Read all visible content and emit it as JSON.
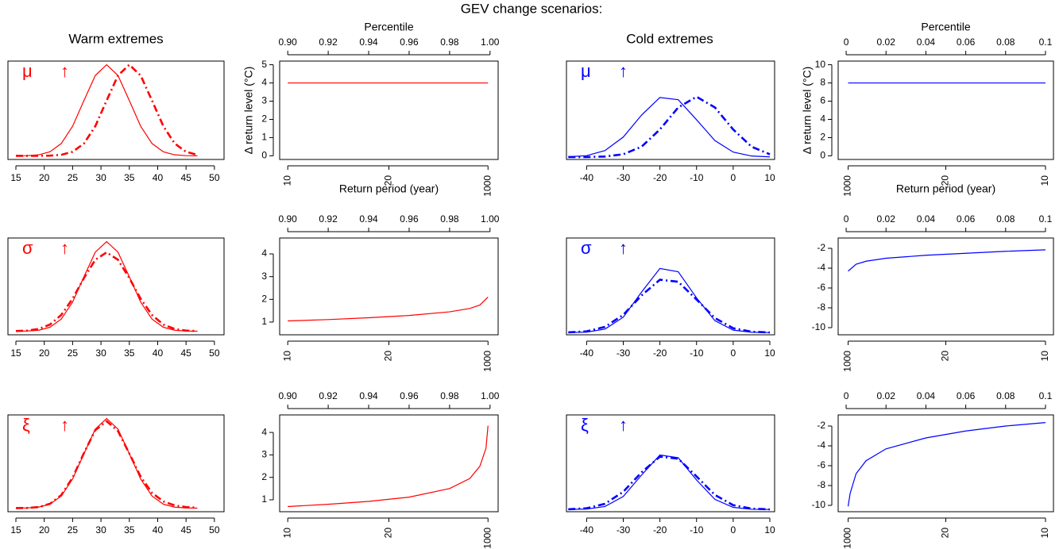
{
  "title": "GEV change scenarios:",
  "column_titles": [
    "Warm extremes",
    "Cold extremes"
  ],
  "chart_data": [
    {
      "type": "line",
      "annotations": [
        "μ",
        "↑"
      ],
      "color": "#ff0000",
      "x": [
        15,
        17,
        19,
        21,
        23,
        25,
        27,
        29,
        31,
        33,
        35,
        37,
        39,
        41,
        43,
        45,
        47
      ],
      "series": [
        {
          "style": "solid",
          "values": [
            0,
            0.0002,
            0.0011,
            0.0044,
            0.0135,
            0.0325,
            0.0607,
            0.0882,
            0.1,
            0.0882,
            0.0607,
            0.0325,
            0.0135,
            0.0044,
            0.0011,
            0.0002,
            0
          ]
        },
        {
          "style": "dashdot",
          "values": [
            0,
            0,
            0,
            0.0002,
            0.0011,
            0.0044,
            0.0135,
            0.0325,
            0.0607,
            0.0882,
            0.1,
            0.0882,
            0.0607,
            0.0325,
            0.0135,
            0.0044,
            0.0011
          ]
        }
      ],
      "xlim": [
        13.6,
        51.7
      ],
      "ylim": [
        -0.004,
        0.104
      ],
      "xticks": [
        15,
        20,
        25,
        30,
        35,
        40,
        45,
        50
      ]
    },
    {
      "type": "line",
      "color": "#ff0000",
      "x2label": "Percentile",
      "xlabel": "Return period (year)",
      "ylabel": "Δ return level (°C)",
      "xlabel_rotation": 90,
      "x": [
        0.9,
        0.999
      ],
      "series": [
        {
          "style": "solid",
          "values": [
            4,
            4
          ]
        }
      ],
      "xlim": [
        0.896,
        1.004
      ],
      "ylim": [
        -0.2,
        5.2
      ],
      "yticks": [
        0,
        1,
        2,
        3,
        4,
        5
      ],
      "x2ticks": [
        {
          "value": 0.9,
          "label": "0.90"
        },
        0.92,
        0.94,
        0.96,
        0.98,
        {
          "value": 1,
          "label": "1.00"
        }
      ],
      "xticks": [
        {
          "value": 0.9,
          "label": "10"
        },
        {
          "value": 0.95,
          "label": "20"
        },
        {
          "value": 0.999,
          "label": "1000"
        }
      ]
    },
    {
      "type": "line",
      "annotations": [
        "μ",
        "↑"
      ],
      "color": "#0000ff",
      "x": [
        -45,
        -40,
        -35,
        -30,
        -25,
        -20,
        -15,
        -10,
        -5,
        0,
        5,
        10
      ],
      "series": [
        {
          "style": "solid",
          "values": [
            0.0002,
            0.0011,
            0.0052,
            0.0162,
            0.0341,
            0.0484,
            0.0466,
            0.0303,
            0.0134,
            0.004,
            0.0008,
            0.0001
          ]
        },
        {
          "style": "dashdot",
          "values": [
            0,
            0,
            0.0004,
            0.0022,
            0.0084,
            0.0224,
            0.0403,
            0.049,
            0.0403,
            0.0224,
            0.0084,
            0.0022
          ]
        }
      ],
      "xlim": [
        -45.5,
        11.3
      ],
      "ylim": [
        -0.002,
        0.078
      ],
      "xticks": [
        -40,
        -30,
        -20,
        -10,
        0,
        10
      ]
    },
    {
      "type": "line",
      "color": "#0000ff",
      "x2label": "Percentile",
      "xlabel": "Return period (year)",
      "ylabel": "Δ return level (°C)",
      "xlabel_rotation": 90,
      "x": [
        0.001,
        0.1
      ],
      "series": [
        {
          "style": "solid",
          "values": [
            8,
            8
          ]
        }
      ],
      "xlim": [
        -0.004,
        0.104
      ],
      "ylim": [
        -0.4,
        10.4
      ],
      "yticks": [
        0,
        2,
        4,
        6,
        8,
        10
      ],
      "x2ticks": [
        0,
        0.02,
        0.04,
        0.06,
        0.08,
        0.1
      ],
      "xticks": [
        {
          "value": 0.001,
          "label": "1000"
        },
        {
          "value": 0.05,
          "label": "20"
        },
        {
          "value": 0.1,
          "label": "10"
        }
      ]
    },
    {
      "type": "line",
      "annotations": [
        "σ",
        "↑"
      ],
      "color": "#ff0000",
      "x": [
        15,
        17,
        19,
        21,
        23,
        25,
        27,
        29,
        31,
        33,
        35,
        37,
        39,
        41,
        43,
        45,
        47
      ],
      "series": [
        {
          "style": "solid",
          "values": [
            0,
            0.0002,
            0.0011,
            0.0044,
            0.0135,
            0.0325,
            0.0607,
            0.0882,
            0.1,
            0.0882,
            0.0607,
            0.0325,
            0.0135,
            0.0044,
            0.0011,
            0.0002,
            0
          ]
        },
        {
          "style": "dashdot",
          "values": [
            0.0002,
            0.0007,
            0.0025,
            0.0074,
            0.0181,
            0.0362,
            0.0593,
            0.0797,
            0.088,
            0.0797,
            0.0593,
            0.0362,
            0.0181,
            0.0074,
            0.0025,
            0.0007,
            0.0002
          ]
        }
      ],
      "xlim": [
        13.6,
        51.7
      ],
      "ylim": [
        -0.004,
        0.104
      ],
      "xticks": [
        15,
        20,
        25,
        30,
        35,
        40,
        45,
        50
      ]
    },
    {
      "type": "line",
      "color": "#ff0000",
      "xlabel_rotation": 90,
      "x": [
        0.9,
        0.92,
        0.94,
        0.96,
        0.98,
        0.99,
        0.995,
        0.999
      ],
      "series": [
        {
          "style": "solid",
          "values": [
            1.05,
            1.11,
            1.19,
            1.29,
            1.45,
            1.6,
            1.75,
            2.1
          ]
        }
      ],
      "xlim": [
        0.896,
        1.004
      ],
      "ylim": [
        0.44,
        4.7
      ],
      "yticks": [
        1,
        2,
        3,
        4
      ],
      "x2ticks": [
        {
          "value": 0.9,
          "label": "0.90"
        },
        0.92,
        0.94,
        0.96,
        0.98,
        {
          "value": 1,
          "label": "1.00"
        }
      ],
      "xticks": [
        {
          "value": 0.9,
          "label": "10"
        },
        {
          "value": 0.95,
          "label": "20"
        },
        {
          "value": 0.999,
          "label": "1000"
        }
      ]
    },
    {
      "type": "line",
      "annotations": [
        "σ",
        "↑"
      ],
      "color": "#0000ff",
      "x": [
        -45,
        -40,
        -35,
        -30,
        -25,
        -20,
        -15,
        -10,
        -5,
        0,
        5,
        10
      ],
      "series": [
        {
          "style": "solid",
          "values": [
            0,
            0.0004,
            0.0031,
            0.0138,
            0.0364,
            0.0576,
            0.0547,
            0.0312,
            0.0107,
            0.0022,
            0.0003,
            0
          ]
        },
        {
          "style": "dashdot",
          "values": [
            0.0002,
            0.0011,
            0.0051,
            0.0159,
            0.0334,
            0.0475,
            0.0457,
            0.0297,
            0.0131,
            0.0039,
            0.0008,
            0.0001
          ]
        }
      ],
      "xlim": [
        -45.5,
        11.3
      ],
      "ylim": [
        -0.002,
        0.085
      ],
      "xticks": [
        -40,
        -30,
        -20,
        -10,
        0,
        10
      ]
    },
    {
      "type": "line",
      "color": "#0000ff",
      "xlabel_rotation": 90,
      "x": [
        0.001,
        0.005,
        0.01,
        0.02,
        0.04,
        0.06,
        0.08,
        0.1
      ],
      "series": [
        {
          "style": "solid",
          "values": [
            -4.3,
            -3.6,
            -3.3,
            -3.0,
            -2.7,
            -2.5,
            -2.3,
            -2.15
          ]
        }
      ],
      "xlim": [
        -0.004,
        0.104
      ],
      "ylim": [
        -10.72,
        -0.96
      ],
      "yticks": [
        -2,
        -4,
        -6,
        -8,
        -10
      ],
      "x2ticks": [
        0,
        0.02,
        0.04,
        0.06,
        0.08,
        0.1
      ],
      "xticks": [
        {
          "value": 0.001,
          "label": "1000"
        },
        {
          "value": 0.05,
          "label": "20"
        },
        {
          "value": 0.1,
          "label": "10"
        }
      ]
    },
    {
      "type": "line",
      "annotations": [
        "ξ",
        "↑"
      ],
      "color": "#ff0000",
      "x": [
        15,
        17,
        19,
        21,
        23,
        25,
        27,
        29,
        31,
        33,
        35,
        37,
        39,
        41,
        43,
        45,
        47
      ],
      "series": [
        {
          "style": "solid",
          "values": [
            0,
            0.0002,
            0.0011,
            0.0044,
            0.0135,
            0.0325,
            0.0607,
            0.0882,
            0.1,
            0.0882,
            0.0607,
            0.0325,
            0.0135,
            0.0044,
            0.0011,
            0.0002,
            0
          ]
        },
        {
          "style": "dashdot",
          "values": [
            0,
            0.0002,
            0.0012,
            0.0048,
            0.0145,
            0.034,
            0.0615,
            0.087,
            0.097,
            0.086,
            0.061,
            0.035,
            0.017,
            0.0075,
            0.003,
            0.0012,
            0.0005
          ]
        }
      ],
      "xlim": [
        13.6,
        51.7
      ],
      "ylim": [
        -0.004,
        0.104
      ],
      "xticks": [
        15,
        20,
        25,
        30,
        35,
        40,
        45,
        50
      ]
    },
    {
      "type": "line",
      "color": "#ff0000",
      "xlabel_rotation": 90,
      "x": [
        0.9,
        0.92,
        0.94,
        0.96,
        0.98,
        0.99,
        0.995,
        0.998,
        0.999
      ],
      "series": [
        {
          "style": "solid",
          "values": [
            0.7,
            0.8,
            0.93,
            1.12,
            1.5,
            1.95,
            2.5,
            3.3,
            4.3
          ]
        }
      ],
      "xlim": [
        0.896,
        1.004
      ],
      "ylim": [
        0.47,
        4.78
      ],
      "yticks": [
        1,
        2,
        3,
        4
      ],
      "x2ticks": [
        {
          "value": 0.9,
          "label": "0.90"
        },
        0.92,
        0.94,
        0.96,
        0.98,
        {
          "value": 1,
          "label": "1.00"
        }
      ],
      "xticks": [
        {
          "value": 0.9,
          "label": "10"
        },
        {
          "value": 0.95,
          "label": "20"
        },
        {
          "value": 0.999,
          "label": "1000"
        }
      ]
    },
    {
      "type": "line",
      "annotations": [
        "ξ",
        "↑"
      ],
      "color": "#0000ff",
      "x": [
        -45,
        -40,
        -35,
        -30,
        -25,
        -20,
        -15,
        -10,
        -5,
        0,
        5,
        10
      ],
      "series": [
        {
          "style": "solid",
          "values": [
            0,
            0.0004,
            0.0027,
            0.0117,
            0.031,
            0.049,
            0.0465,
            0.0265,
            0.0091,
            0.0019,
            0.0002,
            0
          ]
        },
        {
          "style": "dashdot",
          "values": [
            0.0002,
            0.0011,
            0.0051,
            0.0159,
            0.0334,
            0.0475,
            0.0457,
            0.0297,
            0.0131,
            0.0039,
            0.0008,
            0.0001
          ]
        }
      ],
      "xlim": [
        -45.5,
        11.3
      ],
      "ylim": [
        -0.002,
        0.085
      ],
      "xticks": [
        -40,
        -30,
        -20,
        -10,
        0,
        10
      ]
    },
    {
      "type": "line",
      "color": "#0000ff",
      "xlabel_rotation": 90,
      "x": [
        0.001,
        0.002,
        0.005,
        0.01,
        0.02,
        0.04,
        0.06,
        0.08,
        0.1
      ],
      "series": [
        {
          "style": "solid",
          "values": [
            -10.1,
            -8.8,
            -6.8,
            -5.5,
            -4.3,
            -3.2,
            -2.5,
            -2.0,
            -1.65
          ]
        }
      ],
      "xlim": [
        -0.004,
        0.104
      ],
      "ylim": [
        -10.64,
        -0.88
      ],
      "yticks": [
        -2,
        -4,
        -6,
        -8,
        -10
      ],
      "x2ticks": [
        0,
        0.02,
        0.04,
        0.06,
        0.08,
        0.1
      ],
      "xticks": [
        {
          "value": 0.001,
          "label": "1000"
        },
        {
          "value": 0.05,
          "label": "20"
        },
        {
          "value": 0.1,
          "label": "10"
        }
      ]
    }
  ]
}
